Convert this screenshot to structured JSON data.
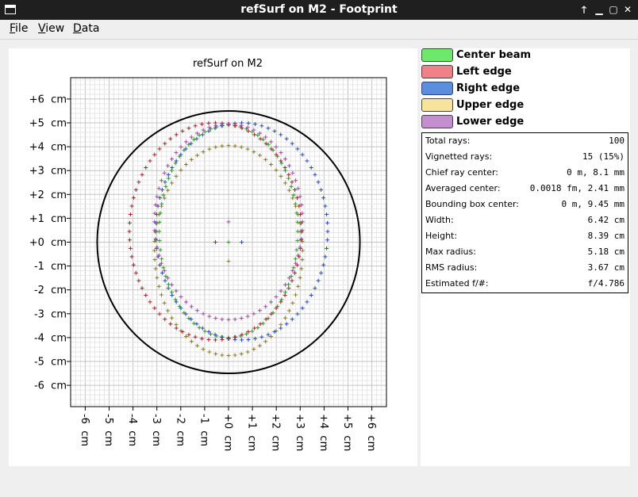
{
  "window": {
    "title": "refSurf on M2 - Footprint",
    "controls": [
      "🡑",
      "▁",
      "▢",
      "✕"
    ]
  },
  "menu": [
    {
      "label": "File"
    },
    {
      "label": "View"
    },
    {
      "label": "Data"
    }
  ],
  "chart_data": {
    "type": "scatter",
    "title": "refSurf on M2",
    "xlabel": "",
    "ylabel": "",
    "unit": "cm",
    "xlim": [
      -6.5,
      6.5
    ],
    "ylim": [
      -6.9,
      6.9
    ],
    "grid": true,
    "x_ticks": [
      "-6 cm",
      "-5 cm",
      "-4 cm",
      "-3 cm",
      "-2 cm",
      "-1 cm",
      "+0 cm",
      "+1 cm",
      "+2 cm",
      "+3 cm",
      "+4 cm",
      "+5 cm",
      "+6 cm"
    ],
    "y_ticks": [
      "+6 cm",
      "+5 cm",
      "+4 cm",
      "+3 cm",
      "+2 cm",
      "+1 cm",
      "+0 cm",
      "-1 cm",
      "-2 cm",
      "-3 cm",
      "-4 cm",
      "-5 cm",
      "-6 cm"
    ],
    "aperture_circle": {
      "cx": 0,
      "cy": 0,
      "r": 5.5
    },
    "series": [
      {
        "name": "Center beam",
        "color": "#2a9a2a",
        "ellipse": {
          "cx": 0.0,
          "cy": 0.45,
          "rx": 2.9,
          "ry": 4.45
        },
        "points": 72
      },
      {
        "name": "Left edge",
        "color": "#9b2a2a",
        "ellipse": {
          "cx": -0.55,
          "cy": 0.45,
          "rx": 3.6,
          "ry": 4.55
        },
        "points": 80
      },
      {
        "name": "Right edge",
        "color": "#2a4fb0",
        "ellipse": {
          "cx": 0.55,
          "cy": 0.45,
          "rx": 3.6,
          "ry": 4.55
        },
        "points": 80
      },
      {
        "name": "Upper edge",
        "color": "#8a7a2a",
        "ellipse": {
          "cx": 0.0,
          "cy": -0.35,
          "rx": 3.1,
          "ry": 4.4
        },
        "points": 72
      },
      {
        "name": "Lower edge",
        "color": "#a04aa0",
        "ellipse": {
          "cx": 0.0,
          "cy": 0.85,
          "rx": 3.1,
          "ry": 4.1
        },
        "points": 72
      }
    ],
    "center_points": [
      {
        "x": 0,
        "y": 0.85,
        "color": "#a04aa0"
      },
      {
        "x": -0.55,
        "y": 0,
        "color": "#9b2a2a"
      },
      {
        "x": 0,
        "y": 0,
        "color": "#2a9a2a"
      },
      {
        "x": 0.55,
        "y": 0,
        "color": "#2a4fb0"
      },
      {
        "x": 0,
        "y": -0.8,
        "color": "#8a7a2a"
      }
    ]
  },
  "legend": [
    {
      "label": "Center beam",
      "color": "#6de86d"
    },
    {
      "label": "Left edge",
      "color": "#f0808a"
    },
    {
      "label": "Right edge",
      "color": "#5c8ee0"
    },
    {
      "label": "Upper edge",
      "color": "#f5e49a"
    },
    {
      "label": "Lower edge",
      "color": "#c58fcf"
    }
  ],
  "stats": [
    {
      "label": "Total rays:",
      "value": "100"
    },
    {
      "label": "Vignetted rays:",
      "value": "15 (15%)"
    },
    {
      "label": "Chief ray center:",
      "value": "0 m, 8.1 mm"
    },
    {
      "label": "Averaged center:",
      "value": "0.0018 fm, 2.41 mm"
    },
    {
      "label": "Bounding box center:",
      "value": "0 m, 9.45 mm"
    },
    {
      "label": "Width:",
      "value": "6.42 cm"
    },
    {
      "label": "Height:",
      "value": "8.39 cm"
    },
    {
      "label": "Max radius:",
      "value": "5.18 cm"
    },
    {
      "label": "RMS radius:",
      "value": "3.67 cm"
    },
    {
      "label": "Estimated f/#:",
      "value": "f/4.786"
    }
  ]
}
